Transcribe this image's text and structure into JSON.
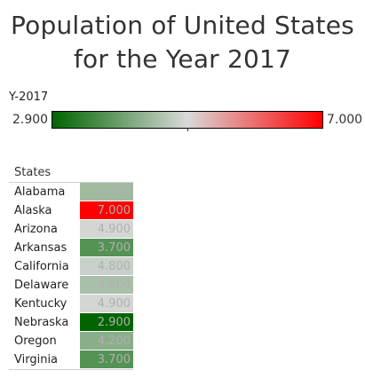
{
  "title_lines": [
    "Population of United States",
    "for the Year 2017"
  ],
  "legend": {
    "title": "Y-2017",
    "min_label": "2.900",
    "max_label": "7.000"
  },
  "table": {
    "header": "States"
  },
  "colors": {
    "low": "#006400",
    "mid": "#d9d9d9",
    "high": "#ff0000"
  },
  "chart_data": {
    "type": "heatmap",
    "title": "Population of United States for the Year 2017",
    "measure": "Y-2017",
    "dimension": "States",
    "color_range": [
      2.9,
      7.0
    ],
    "color_midpoint": 4.95,
    "categories": [
      "Alabama",
      "Alaska",
      "Arizona",
      "Arkansas",
      "California",
      "Delaware",
      "Kentucky",
      "Nebraska",
      "Oregon",
      "Virginia"
    ],
    "values": [
      4.4,
      7.0,
      4.9,
      3.7,
      4.8,
      4.5,
      4.9,
      2.9,
      4.2,
      3.7
    ],
    "value_labels": [
      "4.400",
      "7.000",
      "4.900",
      "3.700",
      "4.800",
      "4.500",
      "4.900",
      "2.900",
      "4.200",
      "3.700"
    ]
  }
}
